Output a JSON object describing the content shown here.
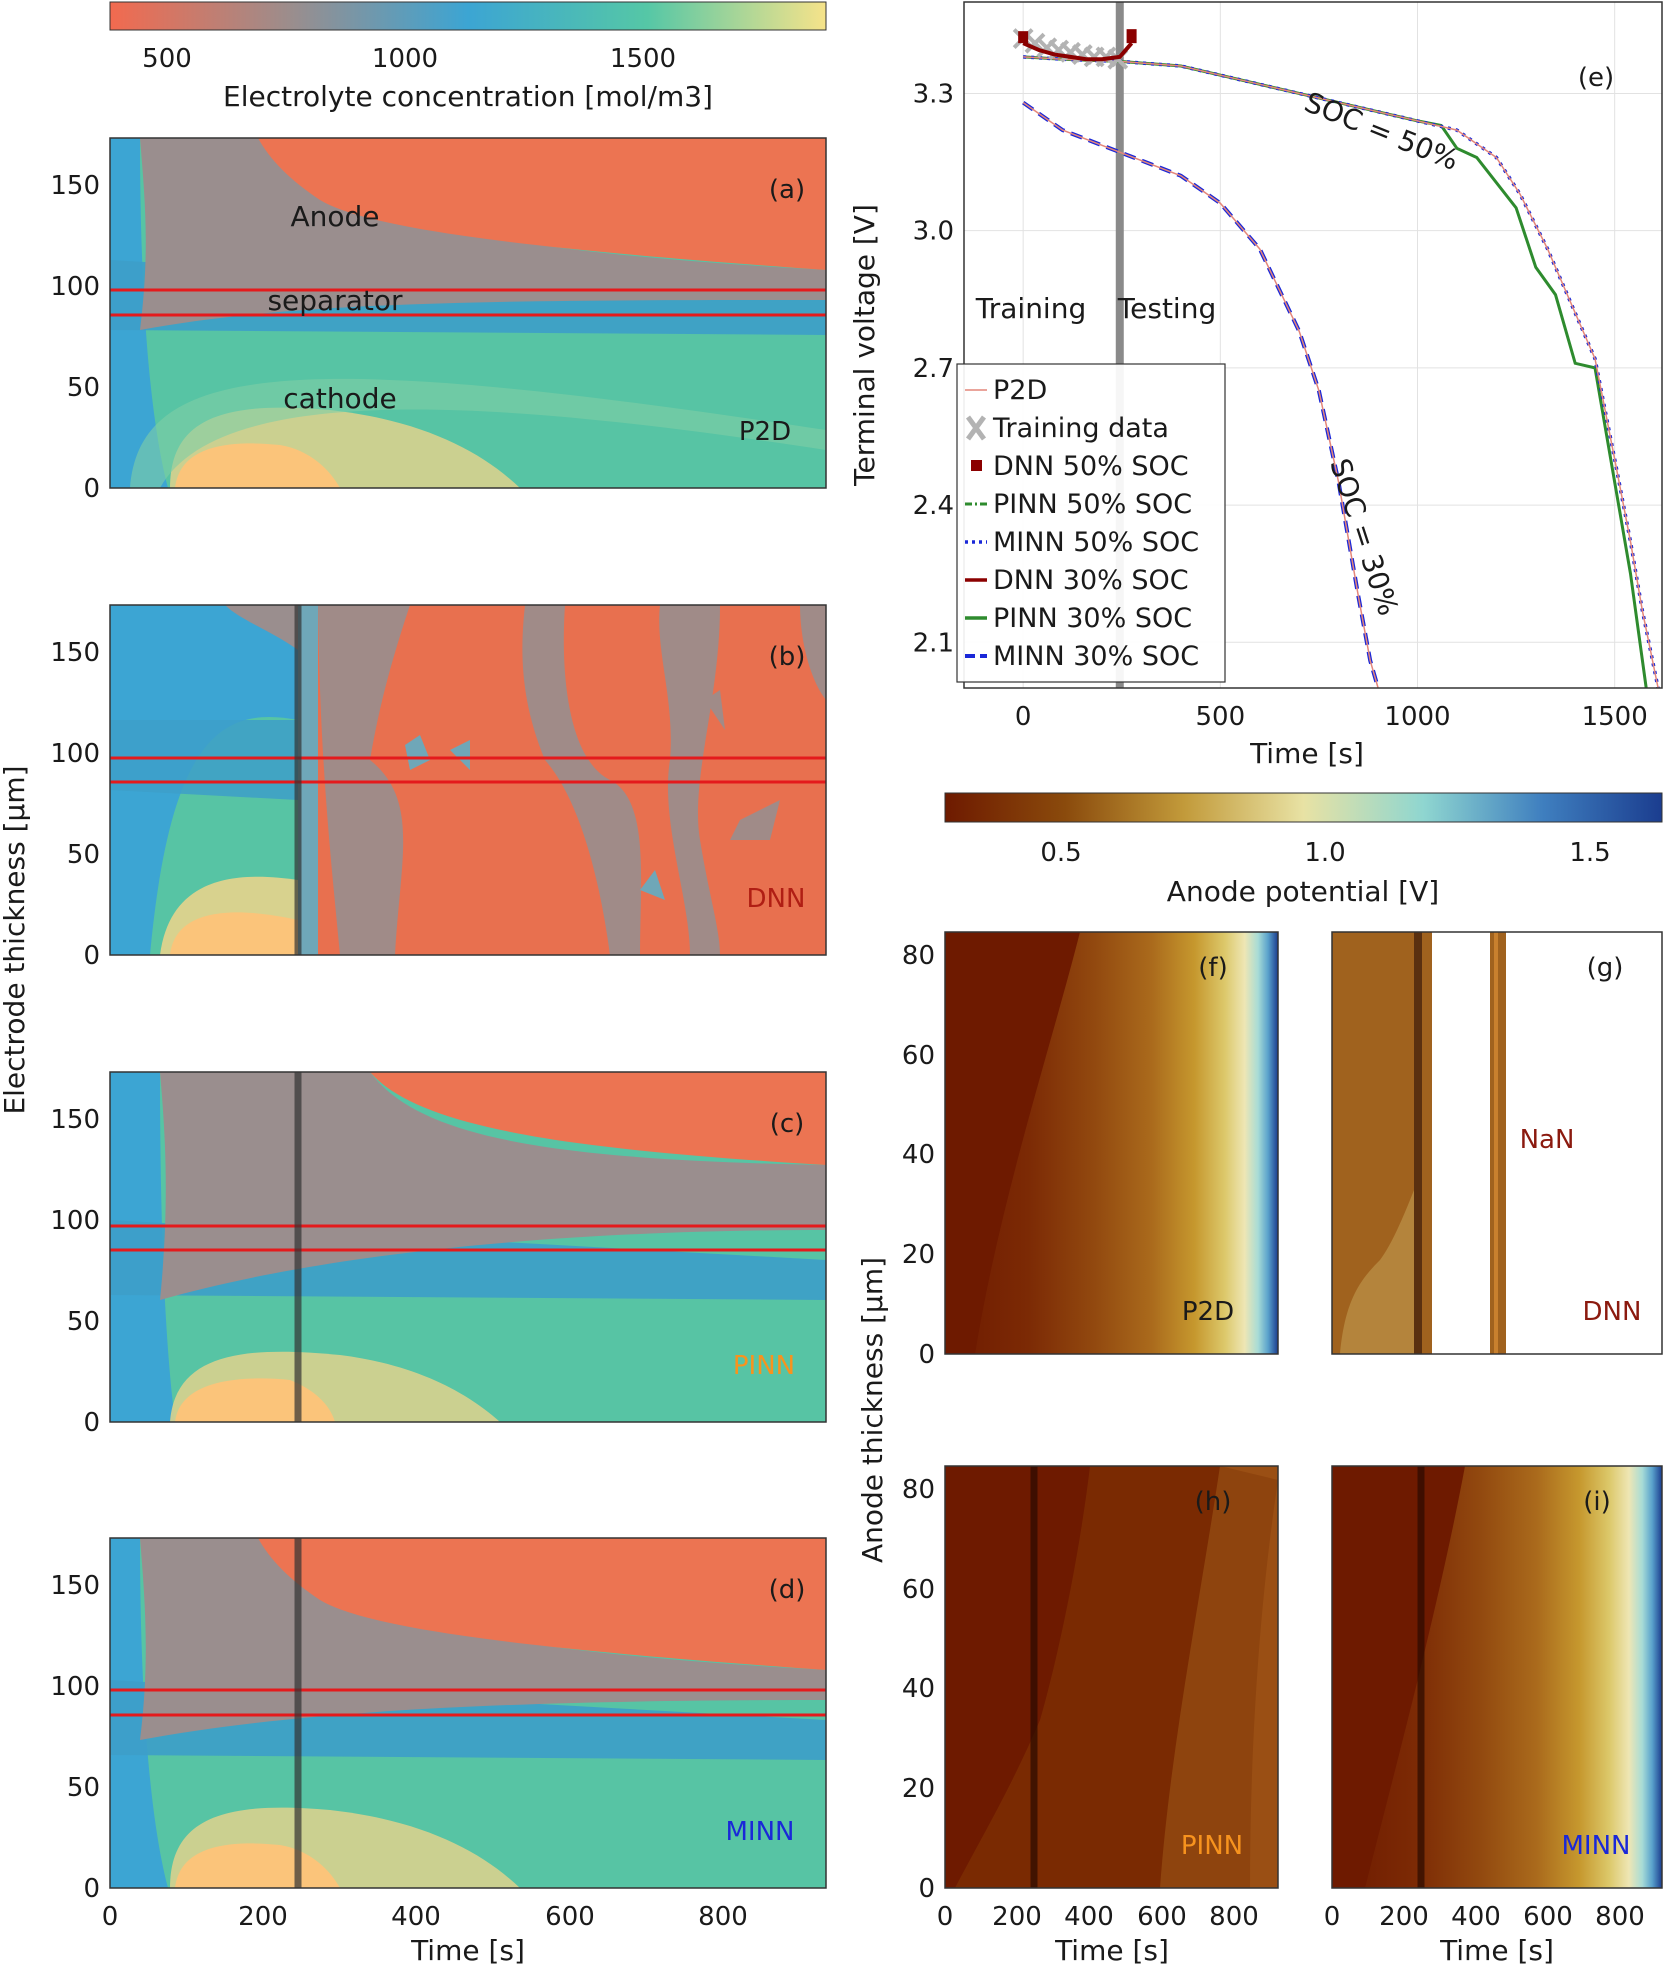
{
  "colorbar_conc": {
    "label": "Electrolyte concentration [mol/m3]",
    "ticks": [
      "500",
      "1000",
      "1500"
    ],
    "colors": [
      "#f26a4f",
      "#9c8d8c",
      "#3ca5d3",
      "#55c7a6",
      "#f6e38a"
    ]
  },
  "colorbar_pot": {
    "label": "Anode potential [V]",
    "ticks": [
      "0.5",
      "1.0",
      "1.5"
    ],
    "colors": [
      "#6e1a00",
      "#8a4a0c",
      "#c29a3a",
      "#e8e2a4",
      "#8fd6d0",
      "#3f7fbf",
      "#1b3d8f"
    ]
  },
  "conc_panels": {
    "xlabel": "Time [s]",
    "ylabel": "Electrode thickness [μm]",
    "yticks": [
      "0",
      "50",
      "100",
      "150"
    ],
    "xticks": [
      "0",
      "200",
      "400",
      "600",
      "800"
    ],
    "region_labels": {
      "anode": "Anode",
      "separator": "separator",
      "cathode": "cathode"
    },
    "panels": [
      {
        "tag": "(a)",
        "model": "P2D",
        "model_color": "#111111"
      },
      {
        "tag": "(b)",
        "model": "DNN",
        "model_color": "#b01e14"
      },
      {
        "tag": "(c)",
        "model": "PINN",
        "model_color": "#f7931e"
      },
      {
        "tag": "(d)",
        "model": "MINN",
        "model_color": "#1a28d8"
      }
    ]
  },
  "pot_panels": {
    "xlabel": "Time [s]",
    "ylabel": "Anode thickness [μm]",
    "yticks": [
      "0",
      "20",
      "40",
      "60",
      "80"
    ],
    "xticks": [
      "0",
      "200",
      "400",
      "600",
      "800"
    ],
    "nan_label": "NaN",
    "panels": [
      {
        "tag": "(f)",
        "model": "P2D",
        "model_color": "#111111"
      },
      {
        "tag": "(g)",
        "model": "DNN",
        "model_color": "#8b1a0f"
      },
      {
        "tag": "(h)",
        "model": "PINN",
        "model_color": "#f7931e"
      },
      {
        "tag": "(i)",
        "model": "MINN",
        "model_color": "#1a28d8"
      }
    ]
  },
  "chart_data": {
    "type": "line",
    "tag": "(e)",
    "xlabel": "Time [s]",
    "ylabel": "Terminal voltage [V]",
    "xlim": [
      -150,
      1620
    ],
    "ylim": [
      2.0,
      3.5
    ],
    "xticks": [
      0,
      500,
      1000,
      1500
    ],
    "yticks": [
      2.1,
      2.4,
      2.7,
      3.0,
      3.3
    ],
    "split_time": 245,
    "region_labels": {
      "training": "Training",
      "testing": "Testing"
    },
    "curve_labels": {
      "soc50": "SOC = 50%",
      "soc30": "SOC = 30%"
    },
    "legend": [
      {
        "label": "P2D",
        "color": "#e4867a",
        "style": "thin"
      },
      {
        "label": "Training data",
        "color": "#b3b3b3",
        "style": "x"
      },
      {
        "label": "DNN 50% SOC",
        "color": "#8b0000",
        "style": "square"
      },
      {
        "label": "PINN 50% SOC",
        "color": "#2e8b2e",
        "style": "dashdot"
      },
      {
        "label": "MINN 50% SOC",
        "color": "#1a28d8",
        "style": "dotted"
      },
      {
        "label": "DNN 30% SOC",
        "color": "#8b0000",
        "style": "solid"
      },
      {
        "label": "PINN 30% SOC",
        "color": "#2e8b2e",
        "style": "solid"
      },
      {
        "label": "MINN 30% SOC",
        "color": "#1a28d8",
        "style": "dashed"
      }
    ],
    "series": [
      {
        "name": "P2D 50% SOC",
        "x": [
          0,
          100,
          250,
          400,
          600,
          800,
          1000,
          1100,
          1200,
          1260,
          1330,
          1400,
          1450,
          1500,
          1540,
          1570,
          1610
        ],
        "y": [
          3.38,
          3.375,
          3.37,
          3.36,
          3.32,
          3.28,
          3.24,
          3.22,
          3.16,
          3.08,
          2.96,
          2.82,
          2.72,
          2.5,
          2.32,
          2.17,
          2.0
        ]
      },
      {
        "name": "PINN 50% SOC",
        "x": [
          0,
          100,
          250,
          400,
          600,
          800,
          1000,
          1060,
          1100,
          1150,
          1250,
          1300,
          1350,
          1400,
          1450,
          1500,
          1540,
          1580
        ],
        "y": [
          3.38,
          3.375,
          3.37,
          3.36,
          3.32,
          3.28,
          3.24,
          3.23,
          3.18,
          3.16,
          3.05,
          2.92,
          2.86,
          2.71,
          2.7,
          2.45,
          2.25,
          2.0
        ]
      },
      {
        "name": "P2D 30% SOC",
        "x": [
          0,
          100,
          250,
          400,
          500,
          600,
          700,
          750,
          800,
          850,
          880,
          900
        ],
        "y": [
          3.28,
          3.22,
          3.17,
          3.12,
          3.06,
          2.96,
          2.78,
          2.65,
          2.45,
          2.2,
          2.06,
          2.0
        ]
      },
      {
        "name": "DNN training",
        "x": [
          0,
          40,
          80,
          120,
          160,
          200,
          245,
          275
        ],
        "y": [
          3.41,
          3.395,
          3.385,
          3.38,
          3.375,
          3.375,
          3.38,
          3.41
        ]
      },
      {
        "name": "Training data",
        "x": [
          0,
          30,
          60,
          90,
          120,
          150,
          180,
          210,
          240
        ],
        "y": [
          3.42,
          3.41,
          3.4,
          3.395,
          3.39,
          3.385,
          3.38,
          3.38,
          3.375
        ]
      }
    ]
  }
}
